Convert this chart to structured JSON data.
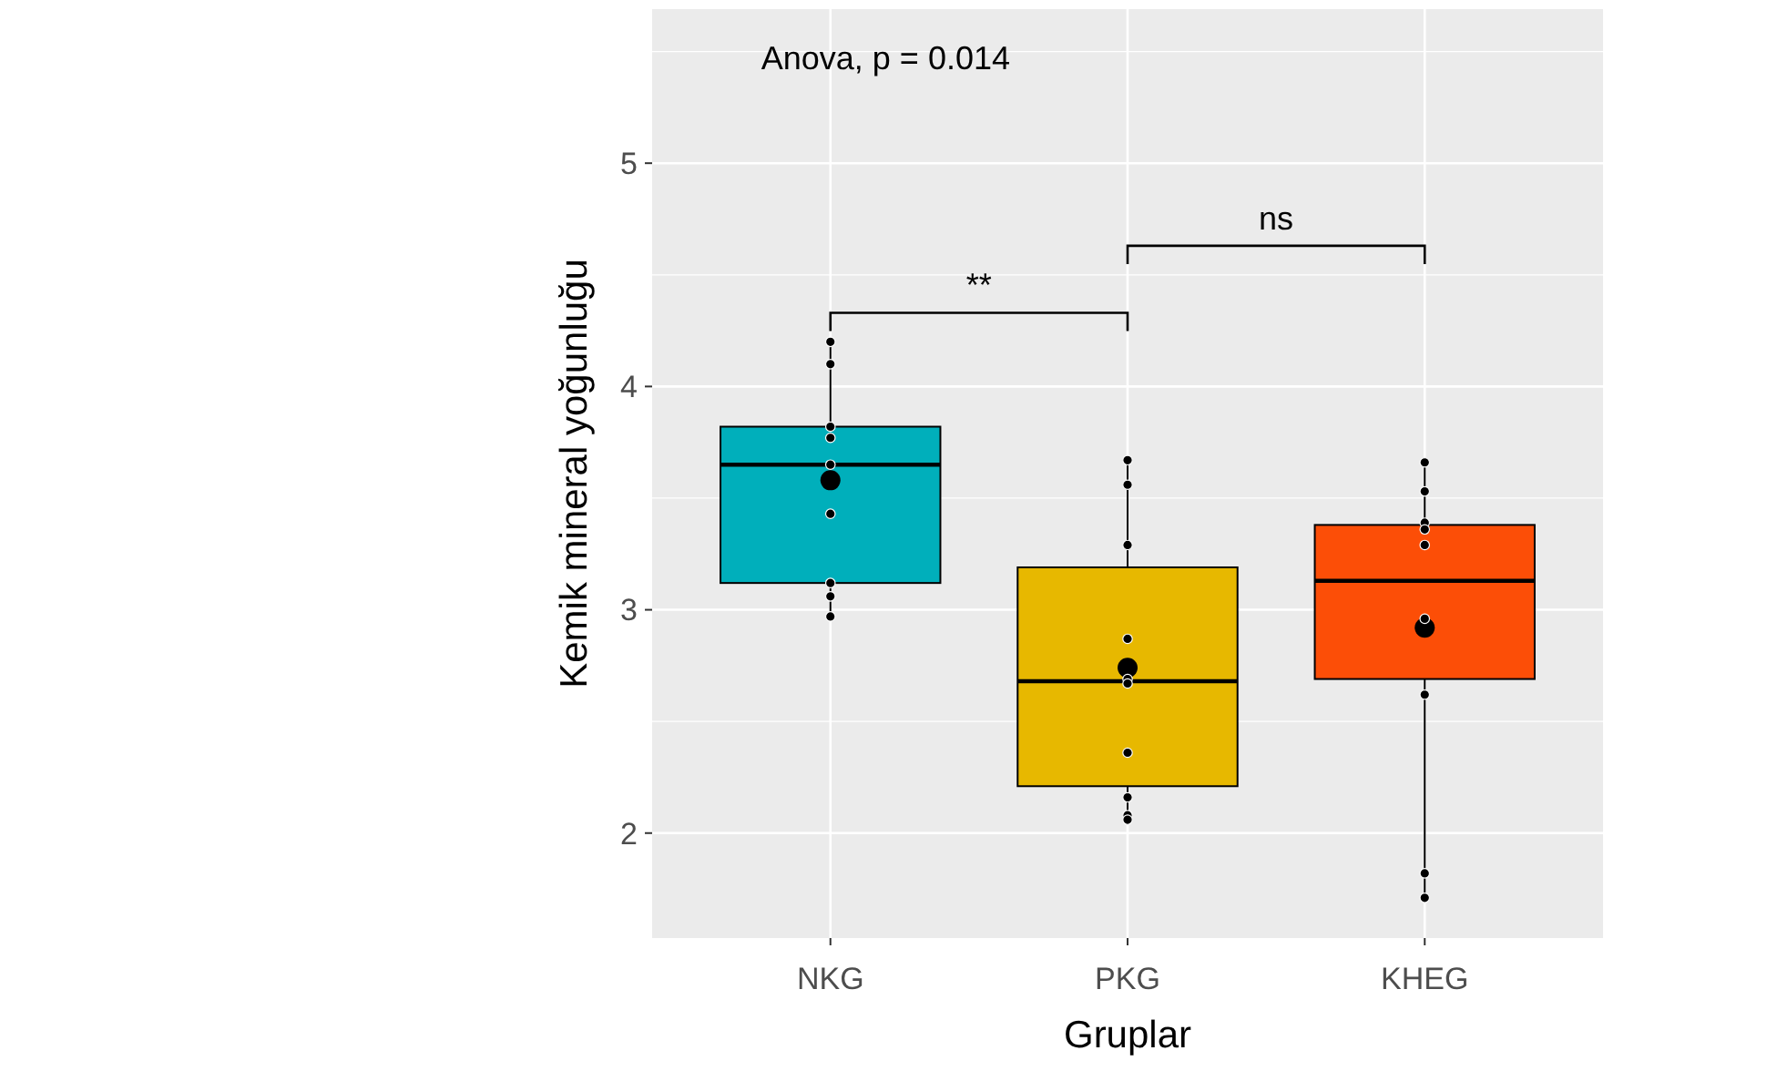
{
  "chart_data": {
    "type": "box",
    "xlabel": "Gruplar",
    "ylabel": "Kemik mineral yoğunluğu",
    "categories": [
      "NKG",
      "PKG",
      "KHEG"
    ],
    "colors": [
      "#00afbb",
      "#e7b800",
      "#fc4e07"
    ],
    "boxes": [
      {
        "low": 2.97,
        "q1": 3.12,
        "median": 3.65,
        "q3": 3.82,
        "high": 4.2,
        "mean": 3.58
      },
      {
        "low": 2.06,
        "q1": 2.21,
        "median": 2.68,
        "q3": 3.19,
        "high": 3.67,
        "mean": 2.74
      },
      {
        "low": 1.72,
        "q1": 2.69,
        "median": 3.13,
        "q3": 3.38,
        "high": 3.65,
        "mean": 2.92
      }
    ],
    "series": [
      {
        "type": "scatter",
        "color": "#000000",
        "x": [
          "NKG",
          "NKG",
          "NKG",
          "NKG",
          "NKG",
          "NKG",
          "NKG",
          "NKG",
          "NKG",
          "PKG",
          "PKG",
          "PKG",
          "PKG",
          "PKG",
          "PKG",
          "PKG",
          "PKG",
          "PKG",
          "PKG",
          "KHEG",
          "KHEG",
          "KHEG",
          "KHEG",
          "KHEG",
          "KHEG",
          "KHEG",
          "KHEG",
          "KHEG"
        ],
        "values": [
          4.2,
          4.1,
          3.82,
          3.77,
          3.65,
          3.43,
          3.12,
          3.06,
          2.97,
          3.67,
          3.56,
          3.29,
          2.87,
          2.69,
          2.67,
          2.36,
          2.16,
          2.08,
          2.06,
          3.66,
          3.53,
          3.39,
          3.36,
          3.29,
          2.96,
          2.62,
          1.82,
          1.71
        ]
      }
    ],
    "ylim": [
      1.53,
      5.69
    ],
    "yticks": [
      2,
      3,
      4,
      5
    ],
    "grid": true,
    "marker": "circle",
    "annotations": [
      "Anova, p = 0.014",
      "**",
      "ns"
    ]
  }
}
